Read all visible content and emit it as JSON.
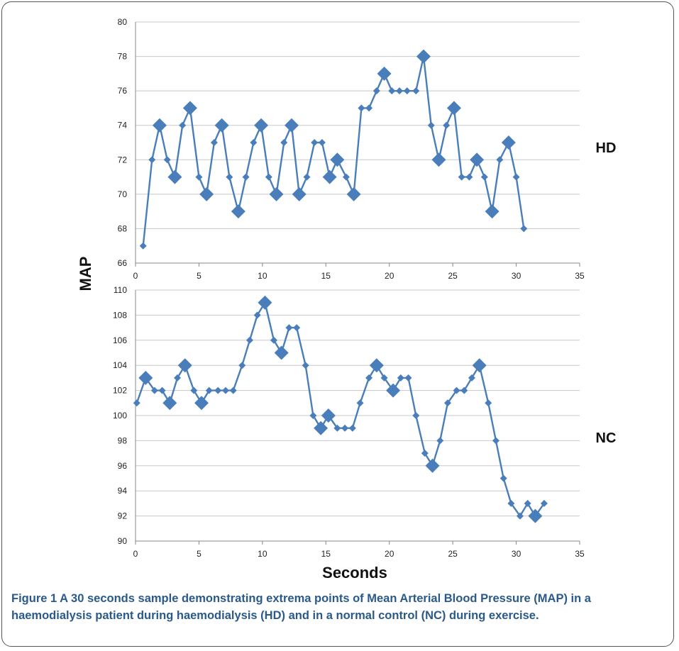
{
  "colors": {
    "series": "#4a7ebb",
    "grid": "#c8c8c8",
    "caption": "#2a5a8a"
  },
  "chart_data": [
    {
      "type": "scatter",
      "panel": "HD",
      "series_label": "HD",
      "xlim": [
        0,
        35
      ],
      "xticks": [
        0,
        5,
        10,
        15,
        20,
        25,
        30,
        35
      ],
      "ylim": [
        66,
        80
      ],
      "yticks": [
        66,
        68,
        70,
        72,
        74,
        76,
        78,
        80
      ],
      "grid": "horizontal",
      "series": [
        {
          "x": [
            0.6,
            1.3,
            1.9,
            2.5,
            3.1,
            3.7,
            4.3,
            5.0,
            5.6,
            6.2,
            6.8,
            7.4,
            8.1,
            8.7,
            9.3,
            9.9,
            10.5,
            11.1,
            11.7,
            12.3,
            12.9,
            13.5,
            14.1,
            14.7,
            15.3,
            15.9,
            16.6,
            17.2,
            17.8,
            18.4,
            19.0,
            19.6,
            20.2,
            20.8,
            21.4,
            22.1,
            22.7,
            23.3,
            23.9,
            24.5,
            25.1,
            25.7,
            26.3,
            26.9,
            27.5,
            28.1,
            28.7,
            29.4,
            30.0,
            30.6
          ],
          "values": [
            67,
            72,
            74,
            72,
            71,
            74,
            75,
            71,
            70,
            73,
            74,
            71,
            69,
            71,
            73,
            74,
            71,
            70,
            73,
            74,
            70,
            71,
            73,
            73,
            71,
            72,
            71,
            70,
            75,
            75,
            76,
            77,
            76,
            76,
            76,
            76,
            78,
            74,
            72,
            74,
            75,
            71,
            71,
            72,
            71,
            69,
            72,
            73,
            71,
            68
          ],
          "extrema": [
            0,
            0,
            1,
            0,
            1,
            0,
            1,
            0,
            1,
            0,
            1,
            0,
            1,
            0,
            0,
            1,
            0,
            1,
            0,
            1,
            1,
            0,
            0,
            0,
            1,
            1,
            0,
            1,
            0,
            0,
            0,
            1,
            0,
            0,
            0,
            0,
            1,
            0,
            1,
            0,
            1,
            0,
            0,
            1,
            0,
            1,
            0,
            1,
            0,
            0
          ]
        }
      ]
    },
    {
      "type": "scatter",
      "panel": "NC",
      "series_label": "NC",
      "xlim": [
        0,
        35
      ],
      "xticks": [
        0,
        5,
        10,
        15,
        20,
        25,
        30,
        35
      ],
      "ylim": [
        90,
        110
      ],
      "yticks": [
        90,
        92,
        94,
        96,
        98,
        100,
        102,
        104,
        106,
        108,
        110
      ],
      "grid": "horizontal",
      "series": [
        {
          "x": [
            0.1,
            0.8,
            1.5,
            2.1,
            2.7,
            3.3,
            3.9,
            4.6,
            5.2,
            5.8,
            6.5,
            7.1,
            7.7,
            8.4,
            9.0,
            9.6,
            10.2,
            10.9,
            11.5,
            12.1,
            12.7,
            13.4,
            14.0,
            14.6,
            15.2,
            15.9,
            16.5,
            17.1,
            17.7,
            18.4,
            19.0,
            19.6,
            20.3,
            20.9,
            21.5,
            22.1,
            22.8,
            23.4,
            24.0,
            24.6,
            25.3,
            25.9,
            26.5,
            27.1,
            27.8,
            28.4,
            29.0,
            29.6,
            30.3,
            30.9,
            31.5,
            32.2
          ],
          "values": [
            101,
            103,
            102,
            102,
            101,
            103,
            104,
            102,
            101,
            102,
            102,
            102,
            102,
            104,
            106,
            108,
            109,
            106,
            105,
            107,
            107,
            104,
            100,
            99,
            100,
            99,
            99,
            99,
            101,
            103,
            104,
            103,
            102,
            103,
            103,
            100,
            97,
            96,
            98,
            101,
            102,
            102,
            103,
            104,
            101,
            98,
            95,
            93,
            92,
            93,
            92,
            93
          ],
          "extrema": [
            0,
            1,
            0,
            0,
            1,
            0,
            1,
            0,
            1,
            0,
            0,
            0,
            0,
            0,
            0,
            0,
            1,
            0,
            1,
            0,
            0,
            0,
            0,
            1,
            1,
            0,
            0,
            0,
            0,
            0,
            1,
            0,
            1,
            0,
            0,
            0,
            0,
            1,
            0,
            0,
            0,
            0,
            0,
            1,
            0,
            0,
            0,
            0,
            0,
            0,
            1,
            0
          ]
        }
      ]
    }
  ],
  "axes": {
    "ylabel": "MAP",
    "xlabel": "Seconds"
  },
  "caption": {
    "label": "Figure 1",
    "text": "A 30 seconds sample demonstrating extrema points of Mean Arterial Blood Pressure (MAP) in a haemodialysis patient during haemodialysis (HD) and in a normal control (NC) during exercise."
  }
}
